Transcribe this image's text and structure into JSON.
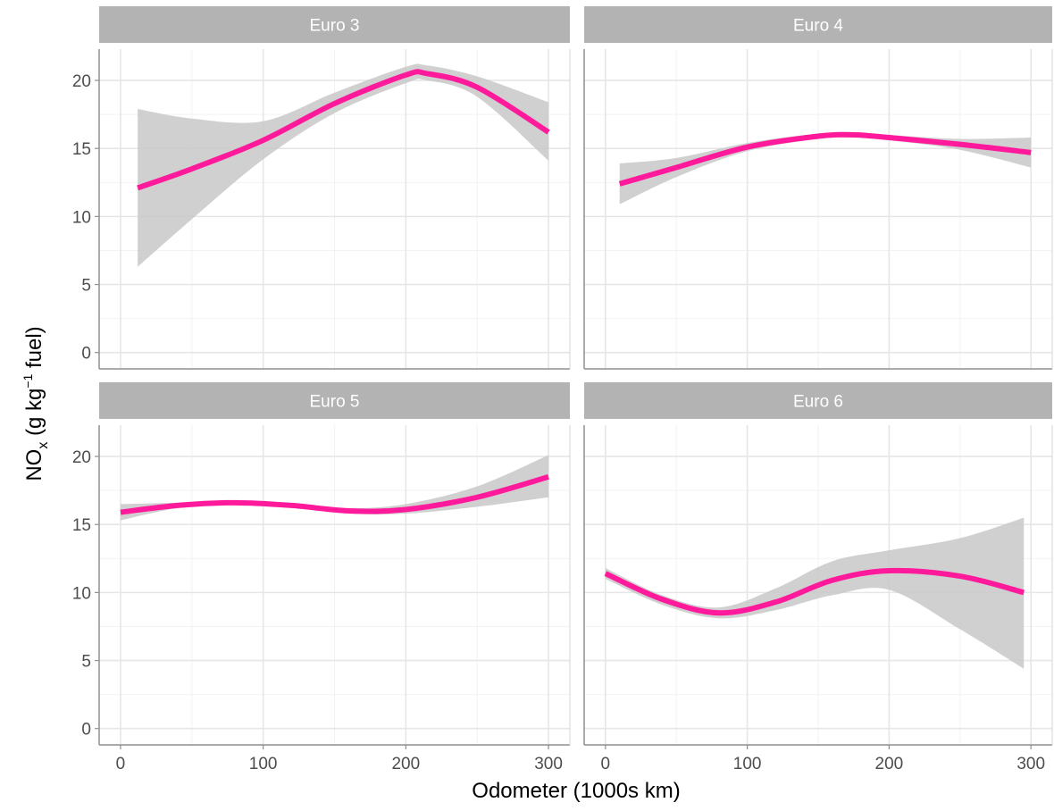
{
  "chart_data": {
    "type": "line",
    "facets": [
      "Euro 3",
      "Euro 4",
      "Euro 5",
      "Euro 6"
    ],
    "xlabel": "Odometer (1000s km)",
    "ylabel": {
      "main": "NO",
      "sub": "x",
      "mid": " (g kg",
      "sup": "−1",
      "end": " fuel)"
    },
    "x_ticks": [
      0,
      100,
      200,
      300
    ],
    "y_ticks": [
      0,
      5,
      10,
      15,
      20
    ],
    "xlim": [
      -15,
      315
    ],
    "ylim": [
      -1.2,
      22.3
    ],
    "grid": true,
    "colors": {
      "line": "#ff1a9c",
      "ribbon": "#c8c8c8",
      "strip": "#b3b3b3",
      "grid_major": "#e6e6e6",
      "grid_minor": "#f2f2f2",
      "panel_border": "#8f8f8f"
    },
    "panels": [
      {
        "name": "Euro 3",
        "x": [
          12,
          50,
          100,
          150,
          200,
          215,
          250,
          300
        ],
        "y": [
          12.1,
          13.5,
          15.6,
          18.3,
          20.4,
          20.5,
          19.5,
          16.2
        ],
        "lower": [
          6.3,
          9.8,
          14.2,
          17.6,
          19.8,
          20.0,
          18.8,
          14.1
        ],
        "upper": [
          17.9,
          17.2,
          17.0,
          19.1,
          21.0,
          21.1,
          20.3,
          18.4
        ]
      },
      {
        "name": "Euro 4",
        "x": [
          10,
          50,
          100,
          150,
          175,
          200,
          250,
          300
        ],
        "y": [
          12.4,
          13.6,
          15.1,
          15.9,
          16.0,
          15.8,
          15.3,
          14.7
        ],
        "lower": [
          10.9,
          12.9,
          14.8,
          15.7,
          15.8,
          15.6,
          14.9,
          13.6
        ],
        "upper": [
          13.9,
          14.3,
          15.4,
          16.1,
          16.2,
          16.0,
          15.7,
          15.8
        ]
      },
      {
        "name": "Euro 5",
        "x": [
          0,
          40,
          80,
          120,
          160,
          200,
          250,
          300
        ],
        "y": [
          15.9,
          16.4,
          16.6,
          16.4,
          16.0,
          16.1,
          17.0,
          18.5
        ],
        "lower": [
          15.3,
          16.2,
          16.5,
          16.3,
          15.8,
          15.8,
          16.3,
          17.0
        ],
        "upper": [
          16.5,
          16.6,
          16.7,
          16.5,
          16.2,
          16.5,
          17.8,
          20.1
        ]
      },
      {
        "name": "Euro 6",
        "x": [
          0,
          40,
          80,
          120,
          160,
          200,
          250,
          295
        ],
        "y": [
          11.4,
          9.5,
          8.5,
          9.3,
          10.9,
          11.6,
          11.2,
          10.0
        ],
        "lower": [
          11.0,
          9.1,
          8.1,
          8.7,
          9.8,
          10.2,
          7.3,
          4.4
        ],
        "upper": [
          11.8,
          9.8,
          8.9,
          10.3,
          12.3,
          13.1,
          14.0,
          15.5
        ]
      }
    ]
  }
}
